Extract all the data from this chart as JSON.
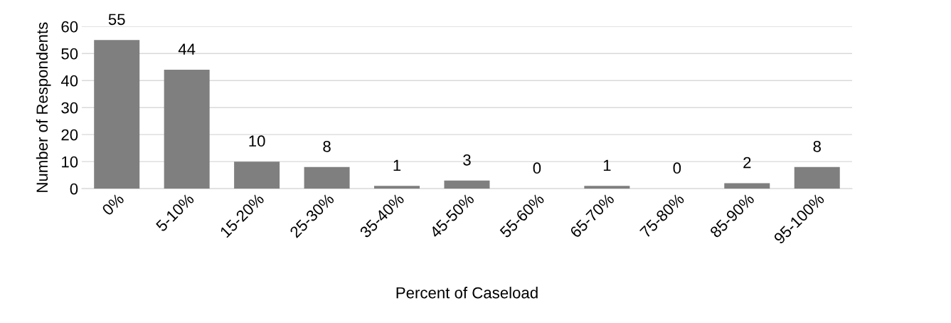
{
  "chart_data": {
    "type": "bar",
    "xlabel": "Percent of Caseload",
    "ylabel": "Number of Respondents",
    "categories": [
      "0%",
      "5-10%",
      "15-20%",
      "25-30%",
      "35-40%",
      "45-50%",
      "55-60%",
      "65-70%",
      "75-80%",
      "85-90%",
      "95-100%"
    ],
    "values": [
      55,
      44,
      10,
      8,
      1,
      3,
      0,
      1,
      0,
      2,
      8
    ],
    "color": "#7f7f7f",
    "ylim": [
      0,
      60
    ],
    "yticks": [
      0,
      10,
      20,
      30,
      40,
      50,
      60
    ],
    "grid": "y",
    "data_labels": true
  }
}
